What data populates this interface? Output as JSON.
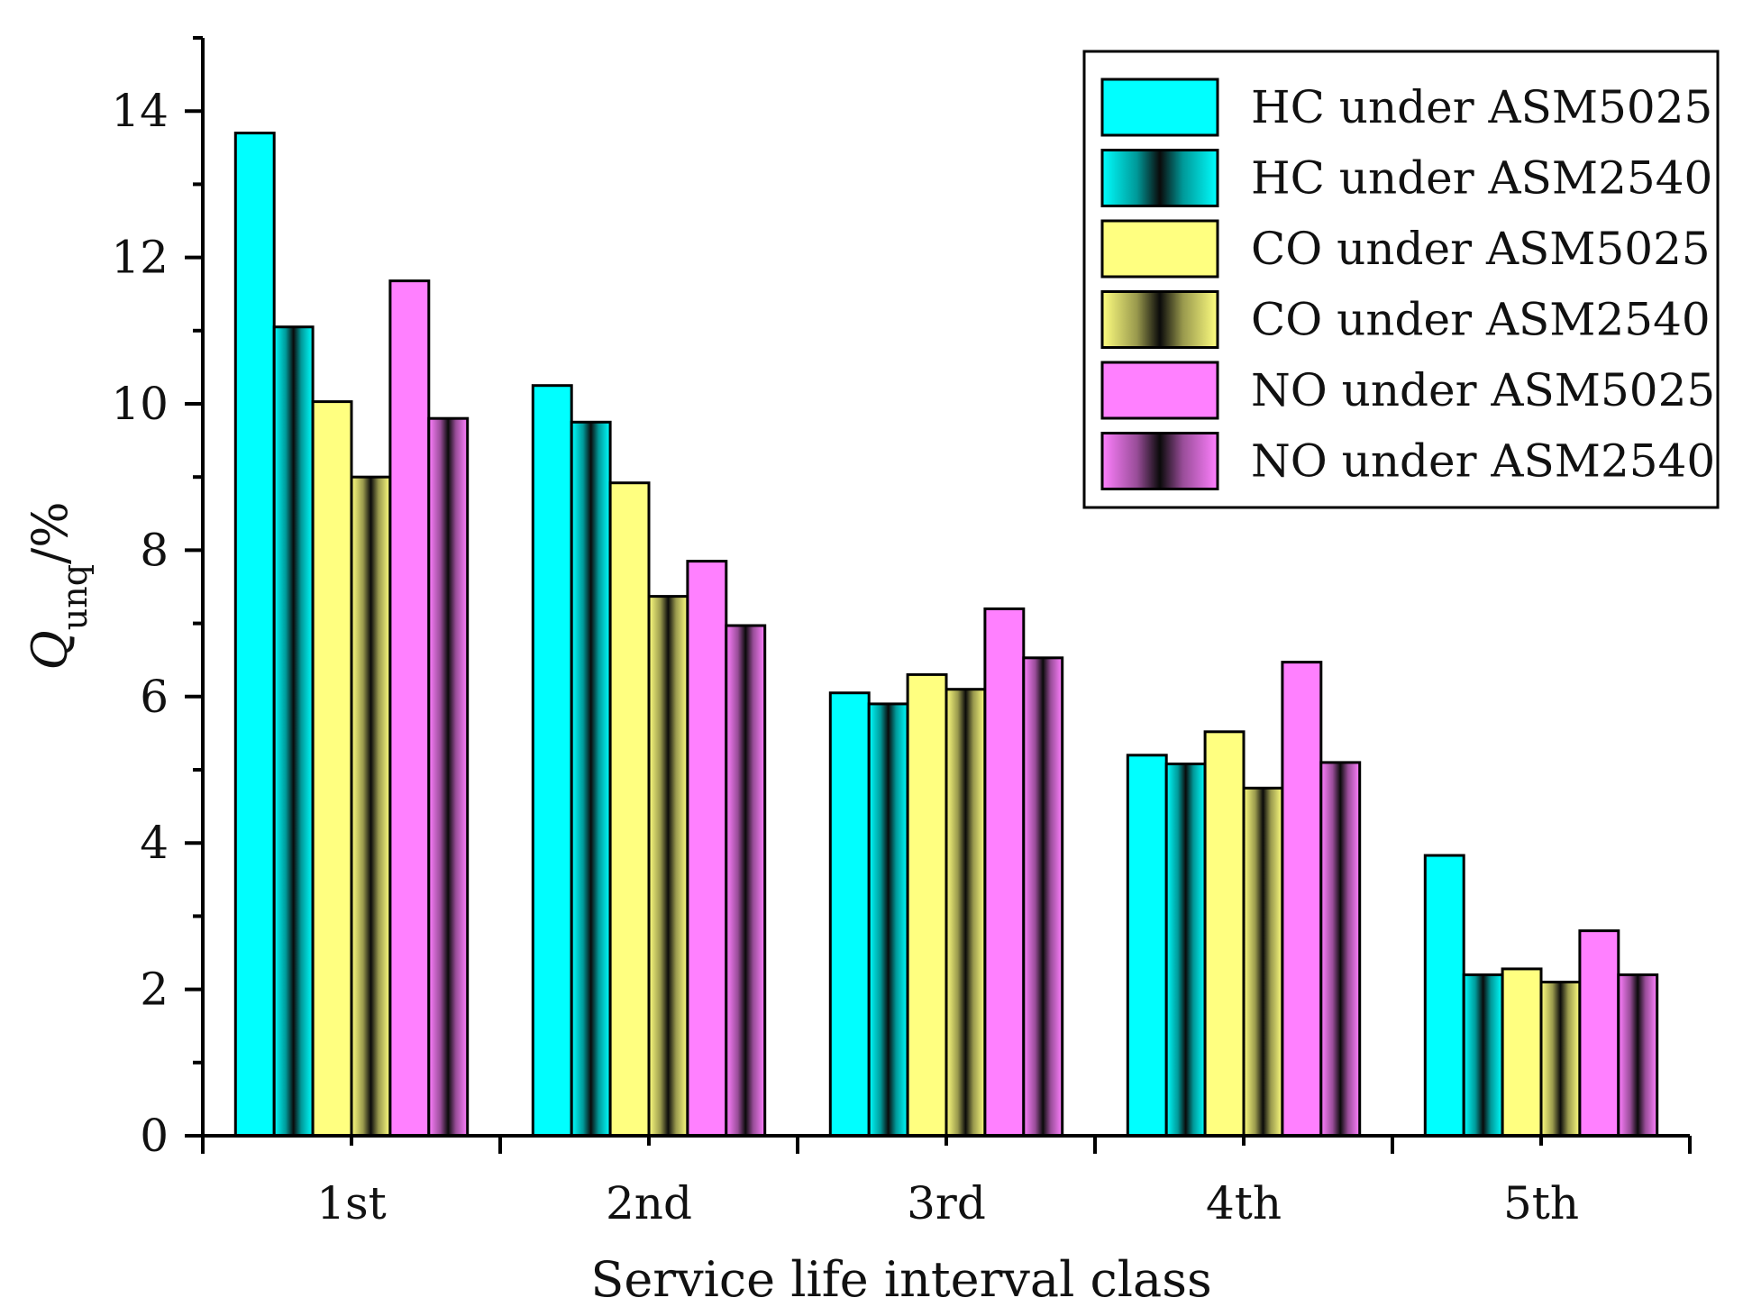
{
  "chart_data": {
    "type": "bar",
    "title": "",
    "xlabel": "Service life interval class",
    "ylabel": {
      "main": "Q",
      "sub": "unq",
      "suffix": "/%"
    },
    "categories": [
      "1st",
      "2nd",
      "3rd",
      "4th",
      "5th"
    ],
    "ylim": [
      0,
      15
    ],
    "yticks": [
      "0",
      "2",
      "4",
      "6",
      "8",
      "10",
      "12",
      "14"
    ],
    "legend_position": "top-right",
    "series": [
      {
        "name": "HC under ASM5025",
        "values": [
          13.7,
          10.25,
          6.05,
          5.2,
          3.83
        ],
        "color": "#00ffff",
        "pattern": "solid"
      },
      {
        "name": "HC under ASM2540",
        "values": [
          11.05,
          9.75,
          5.9,
          5.08,
          2.2
        ],
        "color": "#00ffff",
        "pattern": "gradient"
      },
      {
        "name": "CO under ASM5025",
        "values": [
          10.03,
          8.92,
          6.3,
          5.52,
          2.28
        ],
        "color": "#ffff80",
        "pattern": "solid"
      },
      {
        "name": "CO under ASM2540",
        "values": [
          9.0,
          7.37,
          6.1,
          4.75,
          2.1
        ],
        "color": "#ffff80",
        "pattern": "gradient"
      },
      {
        "name": "NO under ASM5025",
        "values": [
          11.68,
          7.85,
          7.2,
          6.47,
          2.8
        ],
        "color": "#ff80ff",
        "pattern": "solid"
      },
      {
        "name": "NO under ASM2540",
        "values": [
          9.8,
          6.97,
          6.53,
          5.1,
          2.2
        ],
        "color": "#ff80ff",
        "pattern": "gradient"
      }
    ]
  }
}
